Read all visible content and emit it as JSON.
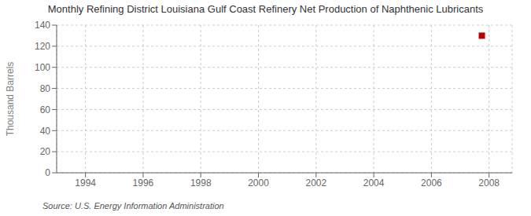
{
  "chart_data": {
    "type": "scatter",
    "title": "Monthly Refining District Louisiana Gulf Coast Refinery Net Production of Naphthenic Lubricants",
    "y_label": "Thousand Barrels",
    "annotation": "Source: U.S. Energy Information Administration",
    "x": [
      2007.75
    ],
    "values": [
      130
    ],
    "color": "#bb0000",
    "marker": "square",
    "xlim": [
      1993.0,
      2008.8
    ],
    "ylim": [
      0,
      140
    ],
    "xticks": [
      1994,
      1996,
      1998,
      2000,
      2002,
      2004,
      2006,
      2008
    ],
    "yticks": [
      0,
      20,
      40,
      60,
      80,
      100,
      120,
      140
    ],
    "grid": true
  }
}
